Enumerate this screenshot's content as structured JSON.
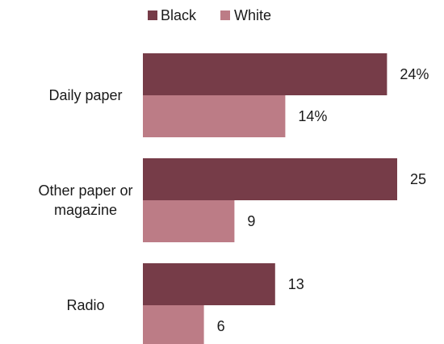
{
  "chart_data": {
    "type": "bar",
    "orientation": "horizontal",
    "categories": [
      [
        "Daily paper"
      ],
      [
        "Other paper or",
        "magazine"
      ],
      [
        "Radio"
      ]
    ],
    "series": [
      {
        "name": "Black",
        "values": [
          24,
          25,
          13
        ],
        "labels": [
          "24%",
          "25",
          "13"
        ],
        "color": "#763c48"
      },
      {
        "name": "White",
        "values": [
          14,
          9,
          6
        ],
        "labels": [
          "14%",
          "9",
          "6"
        ],
        "color": "#bc7c86"
      }
    ],
    "legend_position": "top",
    "xlim": [
      0,
      27
    ],
    "grid": false
  }
}
